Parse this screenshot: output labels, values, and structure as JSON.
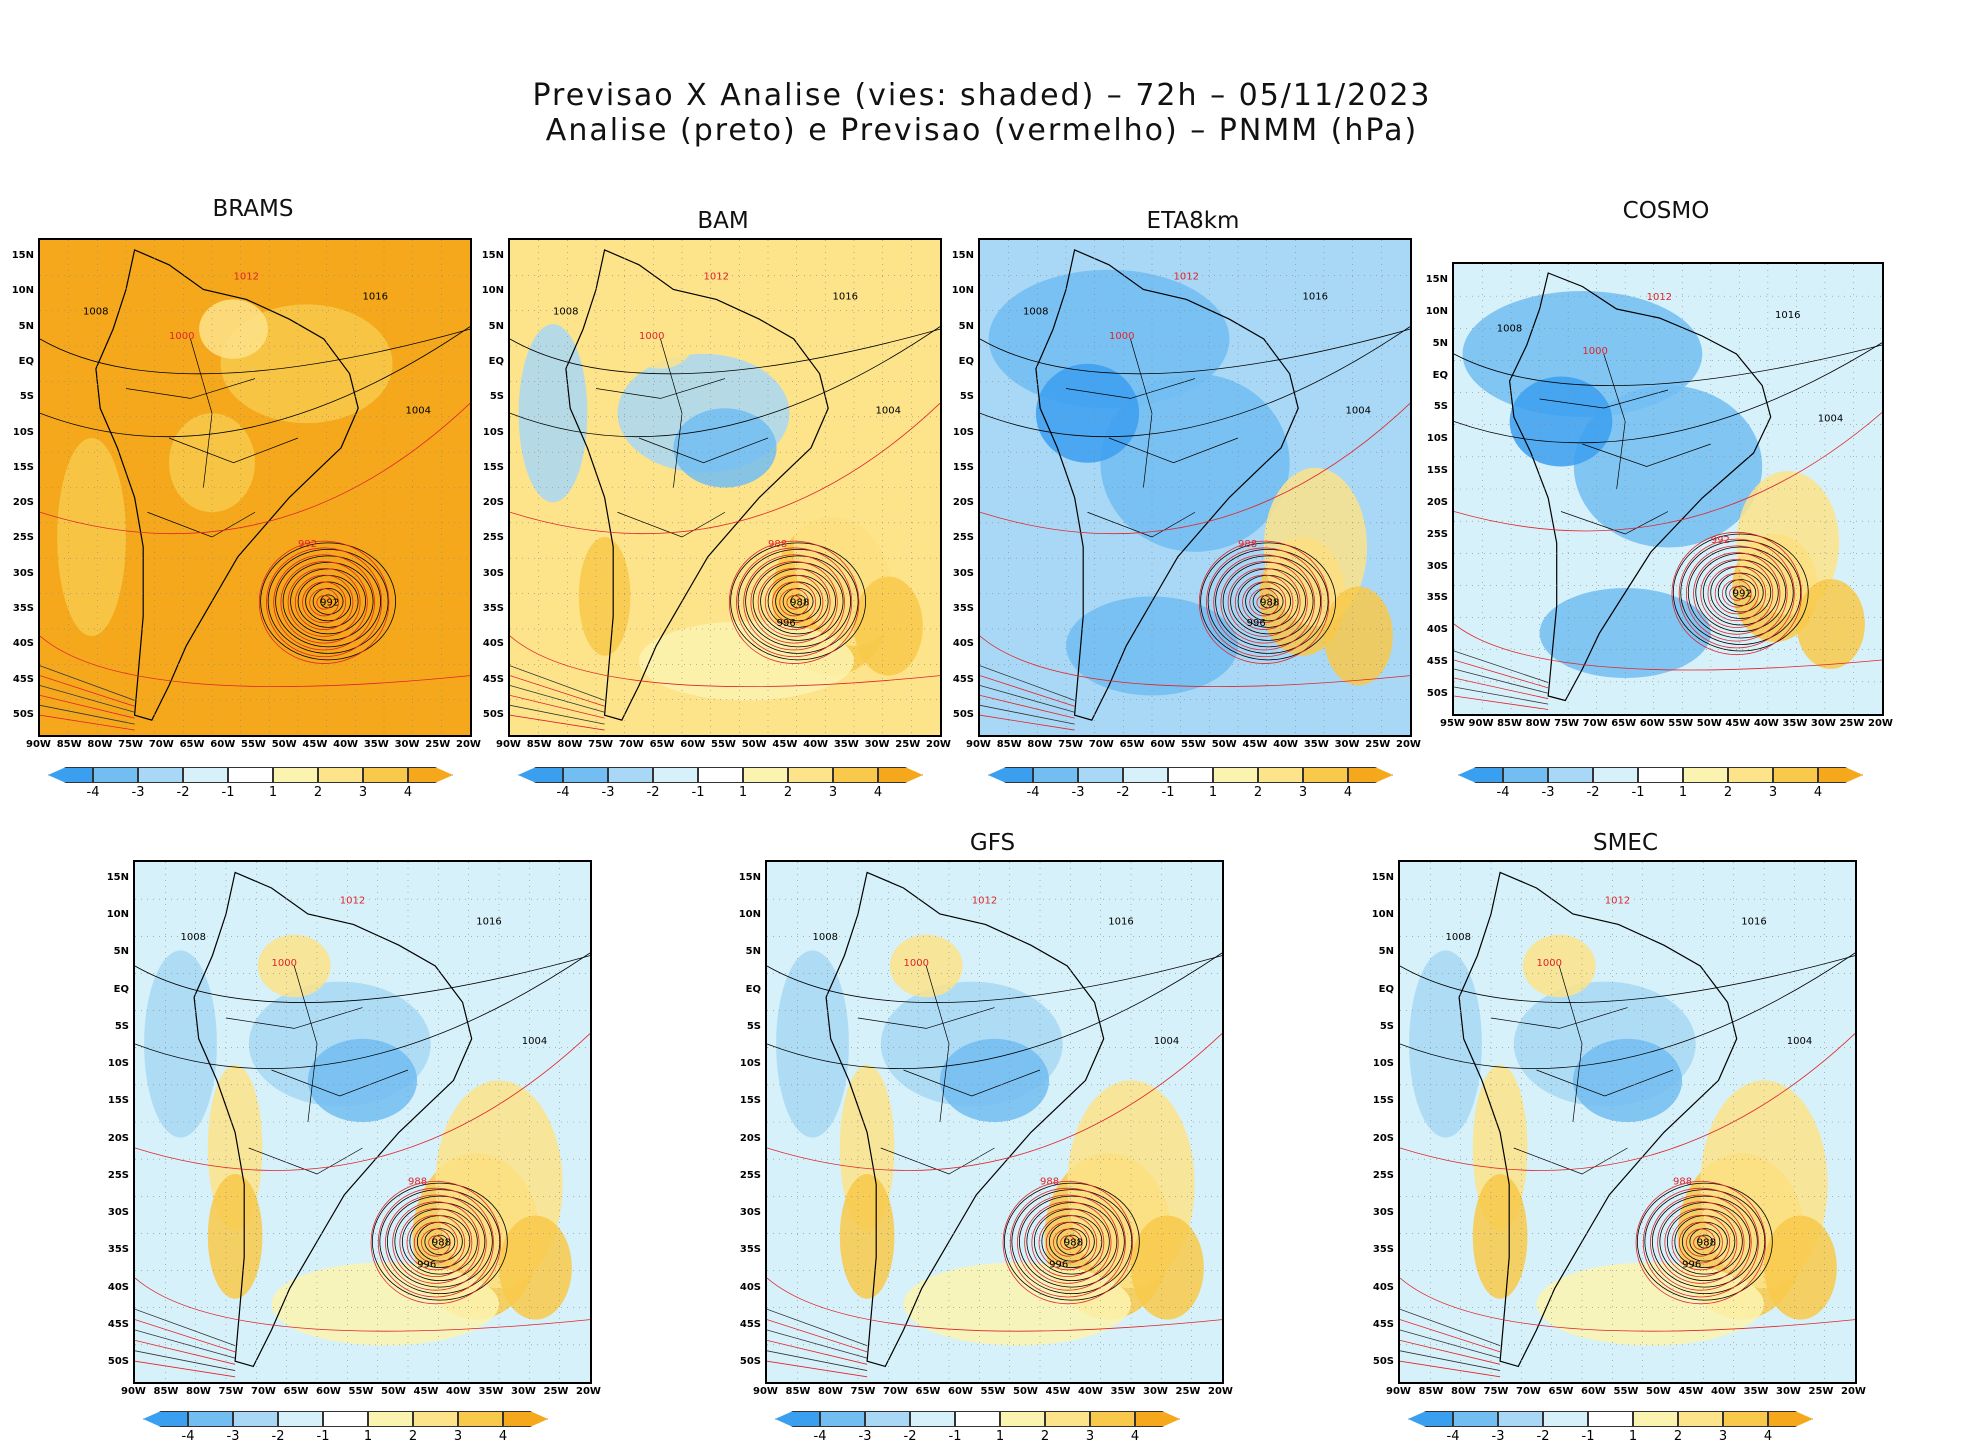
{
  "figure": {
    "title_line1": "Previsao X Analise (vies: shaded) – 72h – 05/11/2023",
    "title_line2": "Analise (preto) e Previsao (vermelho) – PNMM (hPa)"
  },
  "colors": {
    "neg4": "#3b9ff0",
    "neg3": "#72bdf2",
    "neg2": "#a8d8f5",
    "neg1": "#d6f1f9",
    "zero": "#ffffff",
    "pos1": "#fbf3b0",
    "pos2": "#fde38a",
    "pos3": "#f8c94a",
    "pos4": "#f5a81c",
    "analysis_contour": "#000000",
    "forecast_contour": "#e0242a"
  },
  "colorbar": {
    "ticks": [
      "-4",
      "-3",
      "-2",
      "-1",
      "1",
      "2",
      "3",
      "4"
    ],
    "bins": [
      "neg4",
      "neg3",
      "neg2",
      "neg1",
      "zero",
      "pos1",
      "pos2",
      "pos3",
      "pos4"
    ]
  },
  "lat_labels": [
    "15N",
    "10N",
    "5N",
    "EQ",
    "5S",
    "10S",
    "15S",
    "20S",
    "25S",
    "30S",
    "35S",
    "40S",
    "45S",
    "50S"
  ],
  "lon_labels_main": [
    "90W",
    "85W",
    "80W",
    "75W",
    "70W",
    "65W",
    "60W",
    "55W",
    "50W",
    "45W",
    "40W",
    "35W",
    "30W",
    "25W",
    "20W"
  ],
  "lon_labels_cosmo": [
    "95W",
    "90W",
    "85W",
    "80W",
    "75W",
    "70W",
    "65W",
    "60W",
    "55W",
    "50W",
    "45W",
    "40W",
    "35W",
    "30W",
    "25W",
    "20W"
  ],
  "panels": [
    {
      "title": "BRAMS",
      "cyclone_min": "992",
      "contours": [
        "1008",
        "1012",
        "1016",
        "1000",
        "1004",
        "992"
      ]
    },
    {
      "title": "BAM",
      "cyclone_min": "988",
      "contours": [
        "1008",
        "1012",
        "1016",
        "1000",
        "1004",
        "988",
        "996"
      ]
    },
    {
      "title": "ETA8km",
      "cyclone_min": "988",
      "contours": [
        "1008",
        "1012",
        "1016",
        "1000",
        "1004",
        "988",
        "996"
      ]
    },
    {
      "title": "COSMO",
      "cyclone_min": "992",
      "contours": [
        "1008",
        "1012",
        "1016",
        "1000",
        "1004",
        "992"
      ]
    },
    {
      "title": "",
      "cyclone_min": "988",
      "contours": [
        "1008",
        "1012",
        "1016",
        "1000",
        "1004",
        "988",
        "996"
      ]
    },
    {
      "title": "GFS",
      "cyclone_min": "988",
      "contours": [
        "1008",
        "1012",
        "1016",
        "1000",
        "1004",
        "988",
        "996"
      ]
    },
    {
      "title": "SMEC",
      "cyclone_min": "988",
      "contours": [
        "1008",
        "1012",
        "1016",
        "1000",
        "1004",
        "988",
        "996"
      ]
    }
  ]
}
